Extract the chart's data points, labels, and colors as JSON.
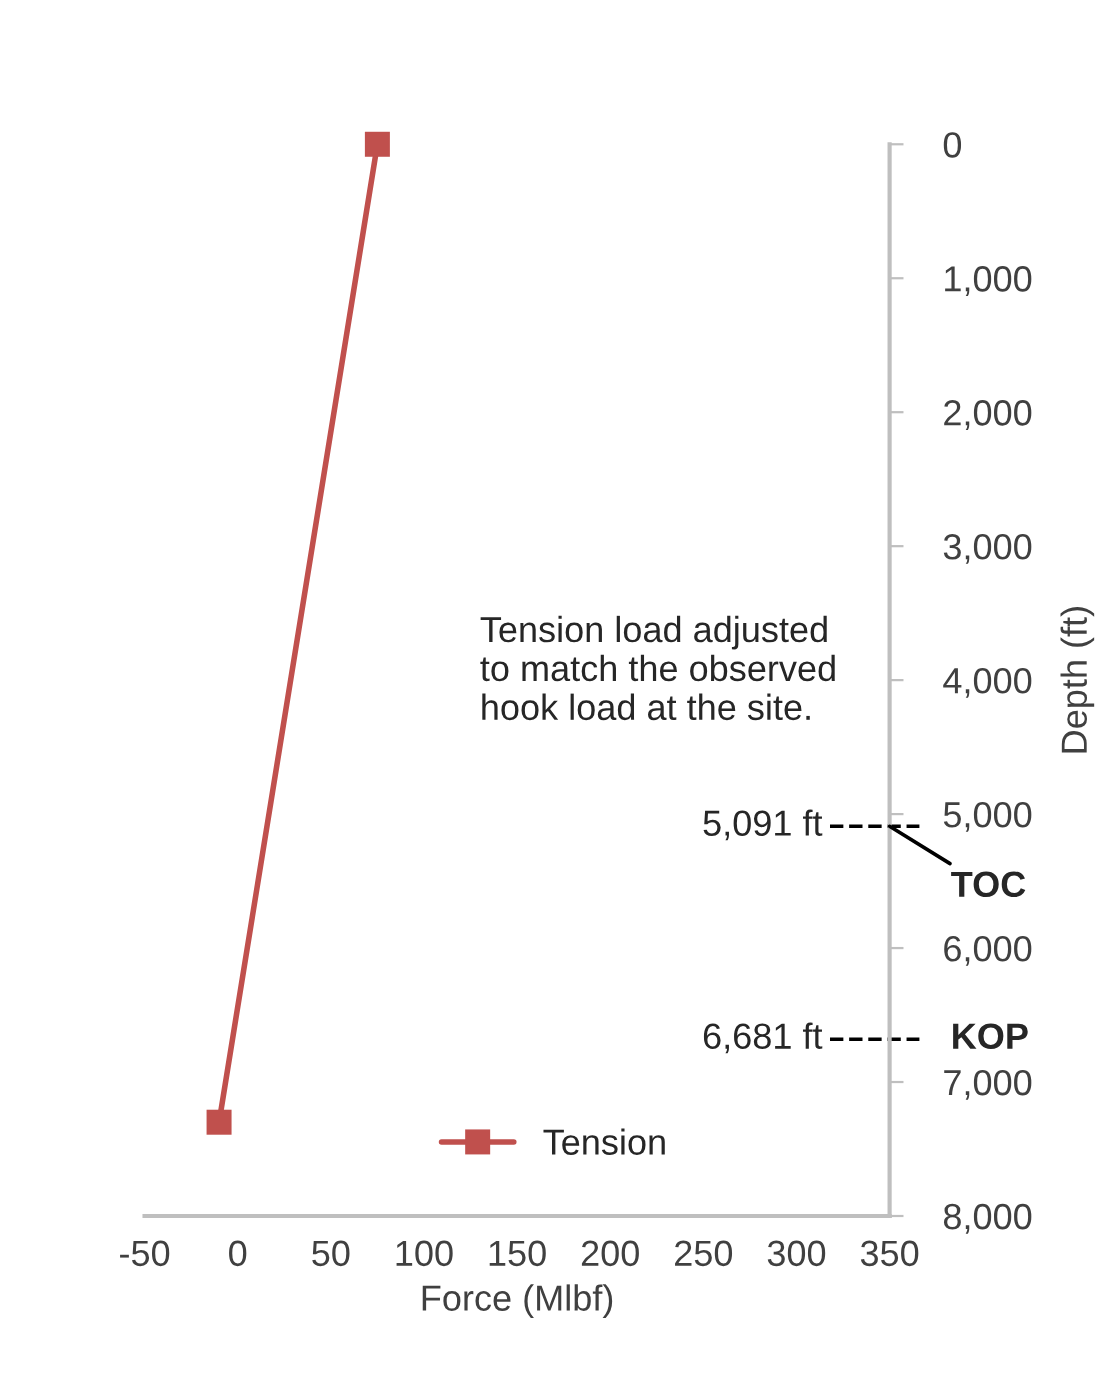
{
  "chart_data": {
    "type": "line",
    "xlabel": "Force (Mlbf)",
    "ylabel": "Depth (ft)",
    "x": [
      75,
      -10
    ],
    "series": [
      {
        "name": "Tension",
        "color": "#c0504d",
        "values": [
          0,
          7300
        ]
      }
    ],
    "marker": "square",
    "line_style": "solid",
    "legend": "bottom",
    "grid": false,
    "xlim": [
      -50,
      350
    ],
    "xticks": [
      {
        "value": -50,
        "label": "-50"
      },
      0,
      50,
      100,
      150,
      200,
      250,
      300,
      350
    ],
    "ylim": [
      8000,
      0
    ],
    "yticks": [
      0,
      {
        "value": 1000,
        "label": "1,000"
      },
      {
        "value": 2000,
        "label": "2,000"
      },
      {
        "value": 3000,
        "label": "3,000"
      },
      {
        "value": 4000,
        "label": "4,000"
      },
      {
        "value": 5000,
        "label": "5,000"
      },
      {
        "value": 6000,
        "label": "6,000"
      },
      {
        "value": 7000,
        "label": "7,000"
      },
      {
        "value": 8000,
        "label": "8,000"
      }
    ],
    "ref_lines": [
      {
        "axis": "y",
        "value": 5091,
        "label": "5,091 ft",
        "color": "#000000",
        "line_style": "dashed"
      },
      {
        "axis": "y",
        "value": 6681,
        "label": "6,681 ft",
        "color": "#000000",
        "line_style": "dashed"
      }
    ],
    "annotations": [
      {
        "text": "TOC",
        "x": 350,
        "y": 5091
      },
      {
        "text": "KOP",
        "x": 350,
        "y": 6681
      },
      "Tension load adjusted\nto match the observed\nhook load at the site."
    ]
  }
}
